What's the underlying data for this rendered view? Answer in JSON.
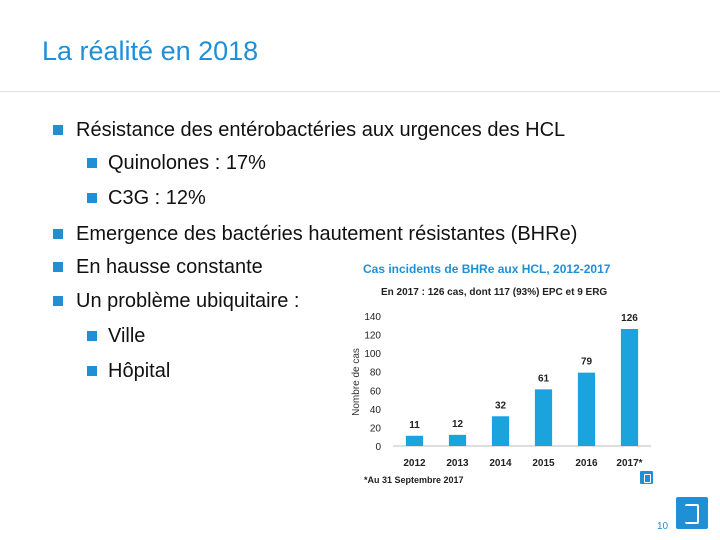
{
  "slide": {
    "title": "La réalité en 2018",
    "page_number": "10",
    "accent_color": "#1f8fd6"
  },
  "bullets": [
    {
      "level": 1,
      "text": "Résistance des entérobactéries aux urgences des HCL"
    },
    {
      "level": 2,
      "text": "Quinolones : 17%"
    },
    {
      "level": 2,
      "text": "C3G : 12%"
    },
    {
      "level": 1,
      "text": "Emergence des bactéries hautement résistantes (BHRe)"
    },
    {
      "level": 1,
      "text": "En hausse constante"
    },
    {
      "level": 1,
      "text": "Un problème ubiquitaire :"
    },
    {
      "level": 2,
      "text": "Ville"
    },
    {
      "level": 2,
      "text": "Hôpital"
    }
  ],
  "chart_data": {
    "type": "bar",
    "title": "Cas incidents de BHRe aux HCL, 2012-2017",
    "subtitle": "En 2017 : 126 cas, dont 117 (93%) EPC et 9 ERG",
    "ylabel": "Nombre de cas",
    "xlabel": "",
    "categories": [
      "2012",
      "2013",
      "2014",
      "2015",
      "2016",
      "2017*"
    ],
    "values": [
      11,
      12,
      32,
      61,
      79,
      126
    ],
    "data_labels": [
      "11",
      "12",
      "32",
      "61",
      "79",
      "126"
    ],
    "ylim": [
      0,
      140
    ],
    "yticks": [
      "0",
      "20",
      "40",
      "60",
      "80",
      "100",
      "120",
      "140"
    ],
    "grid": false,
    "legend": "none",
    "bar_color": "#1aa3dc",
    "footnote": "*Au 31 Septembre 2017"
  }
}
